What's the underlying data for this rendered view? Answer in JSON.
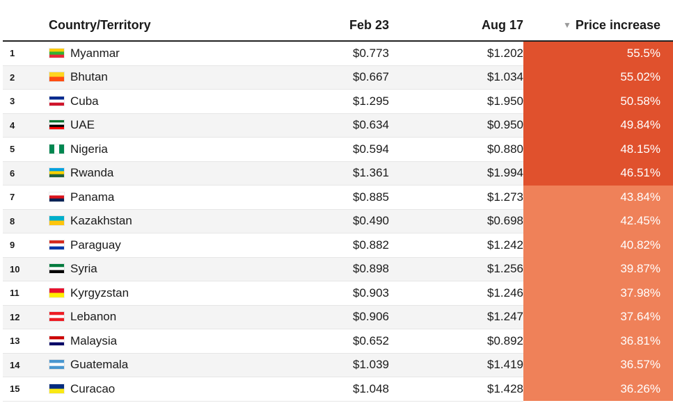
{
  "chart_data": {
    "type": "table",
    "columns": [
      "Country/Territory",
      "Feb 23",
      "Aug 17",
      "Price increase"
    ],
    "sorted_column": "Price increase",
    "sort_direction": "descending",
    "rows": [
      {
        "rank": "1",
        "country": "Myanmar",
        "feb": "$0.773",
        "aug": "$1.202",
        "increase": "55.5%",
        "value": 55.5,
        "flag": [
          "#FECB00",
          "#34B233",
          "#EA2839"
        ]
      },
      {
        "rank": "2",
        "country": "Bhutan",
        "feb": "$0.667",
        "aug": "$1.034",
        "increase": "55.02%",
        "value": 55.02,
        "flag": [
          "#FFD520",
          "#FF4E12"
        ]
      },
      {
        "rank": "3",
        "country": "Cuba",
        "feb": "$1.295",
        "aug": "$1.950",
        "increase": "50.58%",
        "value": 50.58,
        "flag": [
          "#002A8F",
          "#FFFFFF",
          "#CF142B"
        ]
      },
      {
        "rank": "4",
        "country": "UAE",
        "feb": "$0.634",
        "aug": "$0.950",
        "increase": "49.84%",
        "value": 49.84,
        "flag": [
          "#00732F",
          "#FFFFFF",
          "#000000",
          "#FF0000"
        ]
      },
      {
        "rank": "5",
        "country": "Nigeria",
        "feb": "$0.594",
        "aug": "$0.880",
        "increase": "48.15%",
        "value": 48.15,
        "flag": [
          "#008751",
          "#FFFFFF",
          "#008751"
        ]
      },
      {
        "rank": "6",
        "country": "Rwanda",
        "feb": "$1.361",
        "aug": "$1.994",
        "increase": "46.51%",
        "value": 46.51,
        "flag": [
          "#00A1DE",
          "#FAD201",
          "#20603D"
        ]
      },
      {
        "rank": "7",
        "country": "Panama",
        "feb": "$0.885",
        "aug": "$1.273",
        "increase": "43.84%",
        "value": 43.84,
        "flag": [
          "#FFFFFF",
          "#DA121A",
          "#072357"
        ]
      },
      {
        "rank": "8",
        "country": "Kazakhstan",
        "feb": "$0.490",
        "aug": "$0.698",
        "increase": "42.45%",
        "value": 42.45,
        "flag": [
          "#00AFCA",
          "#FEC50C"
        ]
      },
      {
        "rank": "9",
        "country": "Paraguay",
        "feb": "$0.882",
        "aug": "$1.242",
        "increase": "40.82%",
        "value": 40.82,
        "flag": [
          "#D52B1E",
          "#FFFFFF",
          "#0038A8"
        ]
      },
      {
        "rank": "10",
        "country": "Syria",
        "feb": "$0.898",
        "aug": "$1.256",
        "increase": "39.87%",
        "value": 39.87,
        "flag": [
          "#007A3D",
          "#FFFFFF",
          "#000000"
        ]
      },
      {
        "rank": "11",
        "country": "Kyrgyzstan",
        "feb": "$0.903",
        "aug": "$1.246",
        "increase": "37.98%",
        "value": 37.98,
        "flag": [
          "#E8112D",
          "#FFEF00"
        ]
      },
      {
        "rank": "12",
        "country": "Lebanon",
        "feb": "$0.906",
        "aug": "$1.247",
        "increase": "37.64%",
        "value": 37.64,
        "flag": [
          "#ED1C24",
          "#FFFFFF",
          "#ED1C24"
        ]
      },
      {
        "rank": "13",
        "country": "Malaysia",
        "feb": "$0.652",
        "aug": "$0.892",
        "increase": "36.81%",
        "value": 36.81,
        "flag": [
          "#CC0001",
          "#FFFFFF",
          "#010066"
        ]
      },
      {
        "rank": "14",
        "country": "Guatemala",
        "feb": "$1.039",
        "aug": "$1.419",
        "increase": "36.57%",
        "value": 36.57,
        "flag": [
          "#4997D0",
          "#FFFFFF",
          "#4997D0"
        ]
      },
      {
        "rank": "15",
        "country": "Curacao",
        "feb": "$1.048",
        "aug": "$1.428",
        "increase": "36.26%",
        "value": 36.26,
        "flag": [
          "#002B7F",
          "#F9E814"
        ]
      }
    ]
  },
  "colors": {
    "high_increase": "#E0512D",
    "lower_increase": "#EF8159",
    "stripe": "#F4F4F4",
    "sort_icon": "#9A9A9A"
  },
  "threshold": 45,
  "sort_icon_name": "sort-descending-icon"
}
